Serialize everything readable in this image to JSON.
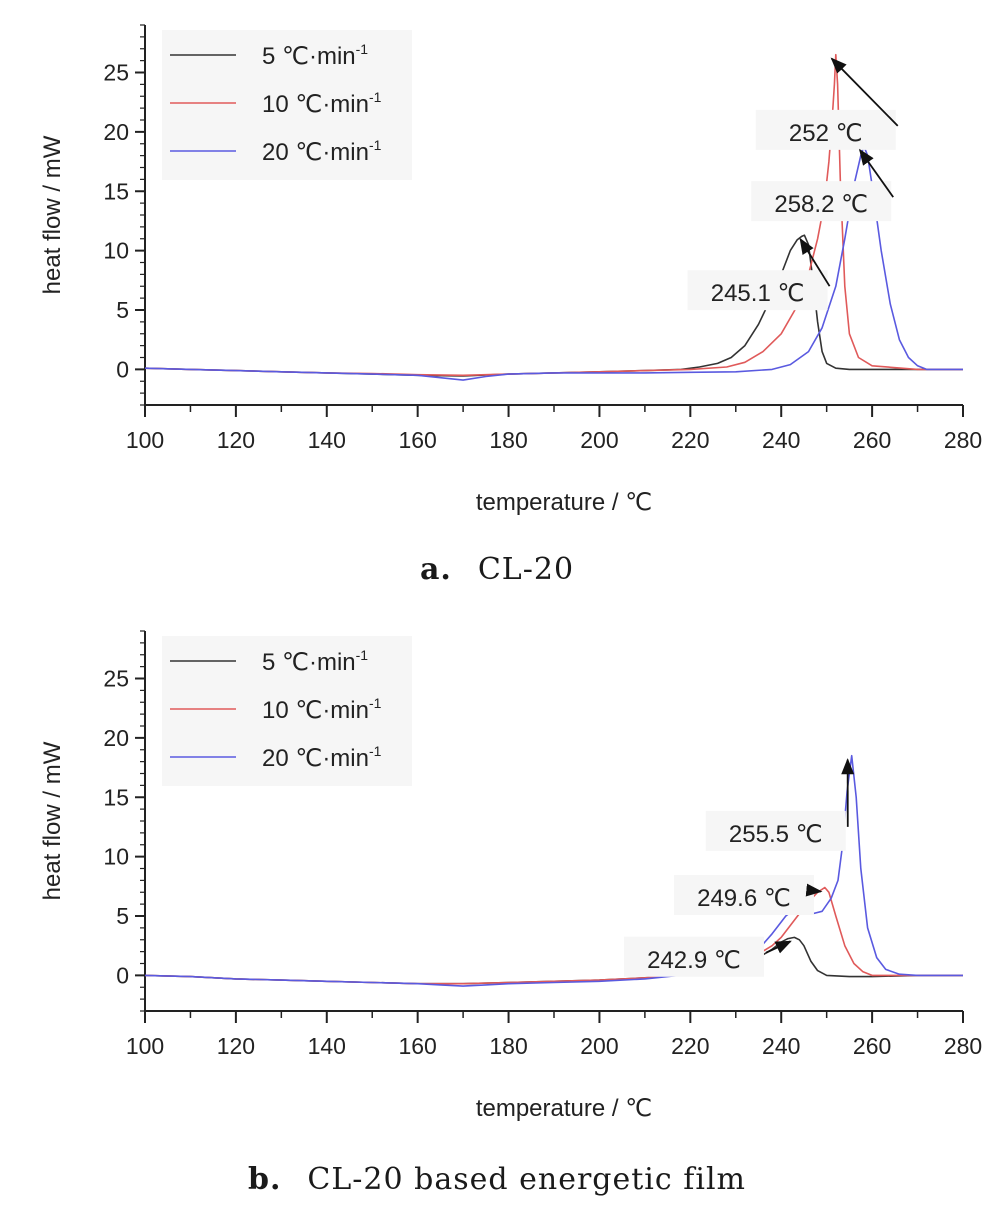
{
  "chart_data": [
    {
      "type": "line",
      "panel_label": "a.",
      "caption": "CL-20",
      "xlabel": "temperature / ℃",
      "ylabel": "heat flow / mW",
      "xlim": [
        100,
        280
      ],
      "ylim": [
        -3,
        29
      ],
      "xticks": [
        100,
        120,
        140,
        160,
        180,
        200,
        220,
        240,
        260,
        280
      ],
      "yticks": [
        0,
        5,
        10,
        15,
        20,
        25
      ],
      "legend_position": "top-left",
      "series": [
        {
          "name": "5 ℃·min",
          "sup": "-1",
          "color": "#333333",
          "x": [
            100,
            110,
            120,
            130,
            140,
            150,
            160,
            170,
            180,
            190,
            200,
            210,
            218,
            222,
            226,
            229,
            232,
            235,
            238,
            240,
            242,
            243.5,
            244.5,
            245.1,
            246,
            247,
            248,
            249,
            250,
            252,
            255,
            260,
            270,
            280
          ],
          "y": [
            0.1,
            0,
            -0.1,
            -0.2,
            -0.3,
            -0.4,
            -0.5,
            -0.55,
            -0.4,
            -0.3,
            -0.2,
            -0.1,
            0,
            0.2,
            0.5,
            1,
            2,
            3.8,
            6.2,
            8,
            10,
            10.9,
            11.2,
            11.3,
            10.5,
            7.5,
            4,
            1.5,
            0.5,
            0.1,
            0,
            0,
            0,
            0
          ]
        },
        {
          "name": "10 ℃·min",
          "sup": "-1",
          "color": "#e05a5a",
          "x": [
            100,
            110,
            120,
            130,
            140,
            150,
            160,
            170,
            180,
            190,
            200,
            210,
            220,
            228,
            232,
            236,
            240,
            243,
            246,
            248,
            249.5,
            250.5,
            251.2,
            251.7,
            252,
            252.4,
            253,
            254,
            255,
            257,
            260,
            270,
            280
          ],
          "y": [
            0.1,
            0,
            -0.1,
            -0.2,
            -0.3,
            -0.35,
            -0.45,
            -0.5,
            -0.4,
            -0.3,
            -0.2,
            -0.1,
            0,
            0.2,
            0.6,
            1.5,
            3,
            5,
            8,
            11,
            14,
            17.5,
            21,
            24,
            26.5,
            24,
            16,
            7,
            3,
            1,
            0.3,
            0,
            0
          ]
        },
        {
          "name": "20 ℃·min",
          "sup": "-1",
          "color": "#5a5ae0",
          "x": [
            100,
            110,
            120,
            130,
            140,
            150,
            160,
            165,
            170,
            175,
            180,
            190,
            200,
            210,
            220,
            230,
            238,
            242,
            246,
            249,
            252,
            254,
            256,
            257.5,
            258.2,
            259,
            260,
            262,
            264,
            266,
            268,
            270,
            272,
            275,
            280
          ],
          "y": [
            0.1,
            0,
            -0.1,
            -0.2,
            -0.3,
            -0.4,
            -0.5,
            -0.7,
            -0.9,
            -0.6,
            -0.4,
            -0.3,
            -0.3,
            -0.3,
            -0.25,
            -0.2,
            0,
            0.4,
            1.5,
            3.5,
            7,
            11,
            15.5,
            18,
            18.8,
            18,
            15.5,
            10,
            5.5,
            2.5,
            1,
            0.3,
            0,
            0,
            0
          ]
        }
      ],
      "annotations": [
        {
          "text": "252 ℃",
          "label_x": 252,
          "label_y": 20,
          "tip_x": 252,
          "tip_y": 26.5
        },
        {
          "text": "258.2 ℃",
          "label_x": 251,
          "label_y": 14,
          "tip_x": 258.2,
          "tip_y": 18.8
        },
        {
          "text": "245.1 ℃",
          "label_x": 237,
          "label_y": 6.5,
          "tip_x": 245.1,
          "tip_y": 11.3
        }
      ]
    },
    {
      "type": "line",
      "panel_label": "b.",
      "caption": "CL-20 based energetic film",
      "xlabel": "temperature / ℃",
      "ylabel": "heat flow / mW",
      "xlim": [
        100,
        280
      ],
      "ylim": [
        -3,
        29
      ],
      "xticks": [
        100,
        120,
        140,
        160,
        180,
        200,
        220,
        240,
        260,
        280
      ],
      "yticks": [
        0,
        5,
        10,
        15,
        20,
        25
      ],
      "legend_position": "top-left",
      "series": [
        {
          "name": "5 ℃·min",
          "sup": "-1",
          "color": "#333333",
          "x": [
            100,
            110,
            120,
            130,
            140,
            150,
            160,
            170,
            180,
            190,
            200,
            210,
            215,
            218,
            222,
            225,
            228,
            231,
            235,
            238,
            240,
            241.5,
            242.9,
            244,
            245,
            246.5,
            248,
            250,
            255,
            260,
            270,
            280
          ],
          "y": [
            0,
            -0.1,
            -0.3,
            -0.4,
            -0.5,
            -0.6,
            -0.7,
            -0.7,
            -0.6,
            -0.5,
            -0.4,
            -0.2,
            0,
            0.4,
            0.9,
            1.1,
            1,
            1.1,
            1.5,
            2.2,
            2.8,
            3.1,
            3.2,
            3,
            2.5,
            1.2,
            0.4,
            0,
            -0.1,
            -0.1,
            0,
            0
          ]
        },
        {
          "name": "10 ℃·min",
          "sup": "-1",
          "color": "#e05a5a",
          "x": [
            100,
            110,
            120,
            130,
            140,
            150,
            160,
            170,
            180,
            190,
            200,
            210,
            220,
            225,
            230,
            235,
            238,
            240,
            242,
            244,
            246,
            248,
            249.6,
            250.5,
            252,
            254,
            256,
            258,
            260,
            265,
            270,
            280
          ],
          "y": [
            0,
            -0.1,
            -0.3,
            -0.4,
            -0.5,
            -0.6,
            -0.7,
            -0.7,
            -0.6,
            -0.5,
            -0.4,
            -0.2,
            0.2,
            0.5,
            1,
            1.8,
            2.5,
            3.2,
            4.2,
            5.2,
            6.2,
            7,
            7.4,
            7,
            5,
            2.5,
            1,
            0.3,
            0,
            0,
            0,
            0
          ]
        },
        {
          "name": "20 ℃·min",
          "sup": "-1",
          "color": "#5a5ae0",
          "x": [
            100,
            110,
            120,
            130,
            140,
            150,
            160,
            165,
            170,
            175,
            180,
            190,
            200,
            210,
            220,
            225,
            230,
            235,
            238,
            241,
            243,
            245,
            247,
            249,
            251,
            252.5,
            253.5,
            254.5,
            255.5,
            256.5,
            257.5,
            259,
            261,
            263,
            266,
            270,
            280
          ],
          "y": [
            0,
            -0.1,
            -0.3,
            -0.4,
            -0.5,
            -0.6,
            -0.7,
            -0.8,
            -0.9,
            -0.8,
            -0.7,
            -0.6,
            -0.5,
            -0.3,
            0.1,
            0.5,
            1.2,
            2.2,
            3.5,
            5,
            5.6,
            5.5,
            5.2,
            5.4,
            6.5,
            8,
            11,
            15.5,
            18.5,
            15,
            9,
            4,
            1.5,
            0.5,
            0.1,
            0,
            0
          ]
        }
      ],
      "annotations": [
        {
          "text": "255.5 ℃",
          "label_x": 241,
          "label_y": 12,
          "tip_x": 255.5,
          "tip_y": 18.5
        },
        {
          "text": "249.6 ℃",
          "label_x": 234,
          "label_y": 6.6,
          "tip_x": 249.6,
          "tip_y": 7.4
        },
        {
          "text": "242.9 ℃",
          "label_x": 223,
          "label_y": 1.4,
          "tip_x": 242.9,
          "tip_y": 3.2
        }
      ]
    }
  ]
}
